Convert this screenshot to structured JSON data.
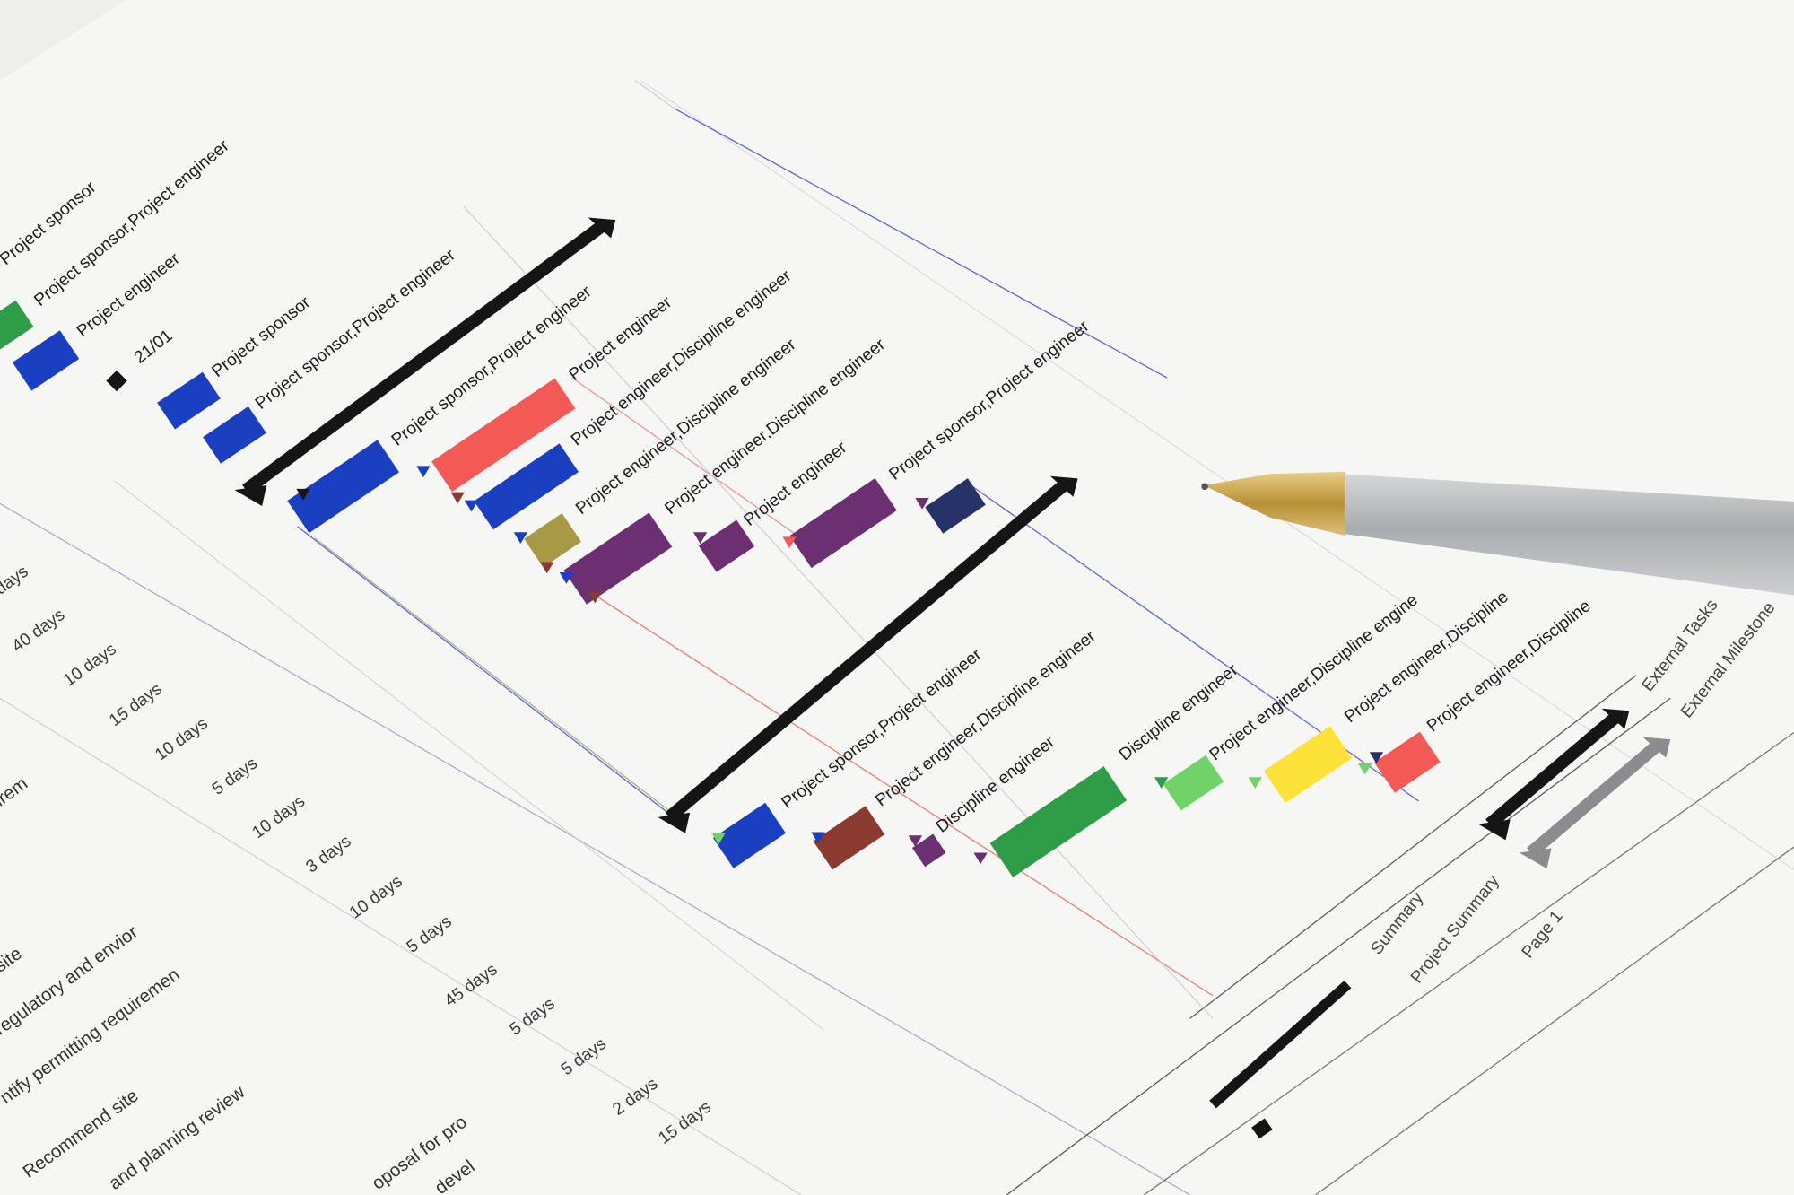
{
  "photo": {
    "subject": "printed gantt chart with pen",
    "colors": {
      "paper": "#f6f6f5",
      "summary_bar": "#151515",
      "project_summary_bar": "#8c8c8f",
      "blue": "#1a3fc0",
      "red": "#f45a55",
      "olive": "#a89a45",
      "purple": "#6b2f72",
      "navy": "#263268",
      "brown": "#8a3a2f",
      "green": "#2f9c48",
      "light_green": "#6fd36a",
      "yellow": "#fde23a",
      "pen_tip": "#c9a64f",
      "pen_body": "#b4b6b8"
    }
  },
  "gantt": {
    "resource_labels": [
      "Project sponsor",
      "Project sponsor,Project engineer",
      "Project engineer",
      "21/01",
      "Project sponsor",
      "Project sponsor,Project engineer",
      "Project sponsor,Project engineer",
      "Project engineer",
      "Project engineer,Discipline engineer",
      "Project engineer,Discipline engineer",
      "Project engineer,Discipline engineer",
      "Project engineer",
      "Project sponsor,Project engineer",
      "Project sponsor,Project engineer",
      "Project engineer,Discipline engineer",
      "Discipline engineer",
      "Discipline engineer",
      "Project engineer,Discipline engine",
      "Project engineer,Discipline",
      "Project engineer,Discipline"
    ],
    "durations": [
      "days",
      "40 days",
      "10 days",
      "15 days",
      "10 days",
      "5 days",
      "10 days",
      "3 days",
      "10 days",
      "5 days",
      "45 days",
      "5 days",
      "5 days",
      "2 days",
      "15 days"
    ],
    "task_names": [
      "irem",
      "site",
      "regulatory and envior",
      "ntify permitting requiremen",
      "Recommend site",
      "and planning review",
      "oposal for pro",
      "devel"
    ]
  },
  "legend": {
    "items": [
      "External Tasks",
      "External Milestone",
      "Summary",
      "Project Summary"
    ],
    "page": "Page 1"
  }
}
